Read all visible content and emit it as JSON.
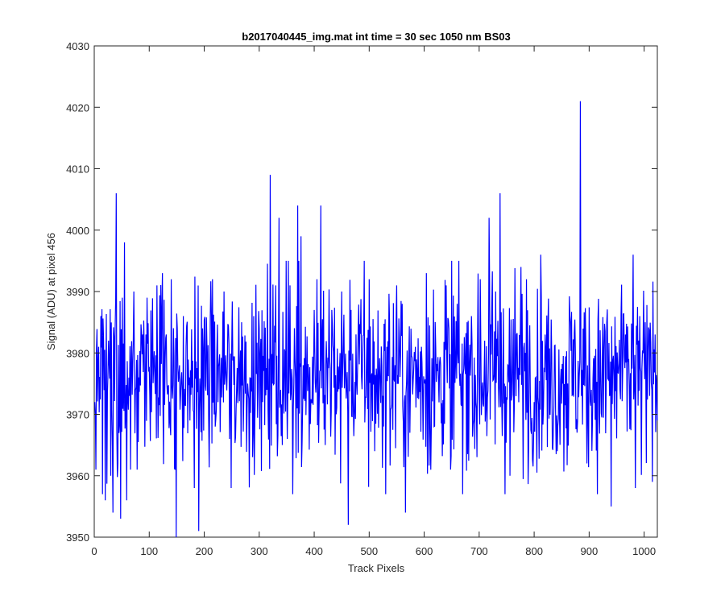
{
  "chart_data": {
    "type": "line",
    "title": "b2017040445_img.mat int time = 30 sec  1050 nm BS03",
    "xlabel": "Track Pixels",
    "ylabel": "Signal (ADU) at pixel 456",
    "xlim": [
      0,
      1024
    ],
    "ylim": [
      3950,
      4030
    ],
    "xticks": [
      0,
      100,
      200,
      300,
      400,
      500,
      600,
      700,
      800,
      900,
      1000
    ],
    "yticks": [
      3950,
      3960,
      3970,
      3980,
      3990,
      4000,
      4010,
      4020,
      4030
    ],
    "grid": false,
    "legend": "none",
    "colors": {
      "series": "#0000ff",
      "axes": "#262626",
      "background": "#ffffff"
    },
    "series": [
      {
        "x_start": 1,
        "x_step": 1,
        "mean": 3976.2,
        "std": 7.4,
        "seed": 445,
        "values_note": "",
        "values_sampled": [
          [
            1,
            3972
          ],
          [
            3,
            3961
          ],
          [
            8,
            3981
          ],
          [
            12,
            3986
          ],
          [
            15,
            3957
          ],
          [
            20,
            3956
          ],
          [
            26,
            3982
          ],
          [
            30,
            3960
          ],
          [
            34,
            3954
          ],
          [
            38,
            3984
          ],
          [
            40,
            4006
          ],
          [
            43,
            3962
          ],
          [
            48,
            3953
          ],
          [
            51,
            3989
          ],
          [
            55,
            3998
          ],
          [
            59,
            3956
          ],
          [
            66,
            3961
          ],
          [
            72,
            3990
          ],
          [
            78,
            3961
          ],
          [
            88,
            3983
          ],
          [
            96,
            3989
          ],
          [
            108,
            3978
          ],
          [
            114,
            3991
          ],
          [
            124,
            3993
          ],
          [
            131,
            3983
          ],
          [
            140,
            3992
          ],
          [
            147,
            3961
          ],
          [
            149,
            3950
          ],
          [
            155,
            3978
          ],
          [
            162,
            3986
          ],
          [
            174,
            3969
          ],
          [
            182,
            3958
          ],
          [
            190,
            3951
          ],
          [
            197,
            3984
          ],
          [
            215,
            3992
          ],
          [
            220,
            3968
          ],
          [
            230,
            3975
          ],
          [
            236,
            3990
          ],
          [
            249,
            3958
          ],
          [
            262,
            3978
          ],
          [
            268,
            3985
          ],
          [
            278,
            3971
          ],
          [
            290,
            3986
          ],
          [
            300,
            3984
          ],
          [
            306,
            3972
          ],
          [
            314,
            3974
          ],
          [
            320,
            4009
          ],
          [
            324,
            3975
          ],
          [
            330,
            3991
          ],
          [
            336,
            4002
          ],
          [
            342,
            3965
          ],
          [
            350,
            3976
          ],
          [
            356,
            3991
          ],
          [
            361,
            3957
          ],
          [
            365,
            3979
          ],
          [
            370,
            4004
          ],
          [
            372,
            3995
          ],
          [
            376,
            3999
          ],
          [
            380,
            3978
          ],
          [
            390,
            3976
          ],
          [
            400,
            3987
          ],
          [
            405,
            3992
          ],
          [
            412,
            4004
          ],
          [
            420,
            3965
          ],
          [
            432,
            3987
          ],
          [
            440,
            3970
          ],
          [
            450,
            3990
          ],
          [
            462,
            3952
          ],
          [
            467,
            3987
          ],
          [
            480,
            3984
          ],
          [
            491,
            3995
          ],
          [
            500,
            3992
          ],
          [
            510,
            3964
          ],
          [
            520,
            3975
          ],
          [
            532,
            3981
          ],
          [
            540,
            3971
          ],
          [
            550,
            3991
          ],
          [
            560,
            3988
          ],
          [
            566,
            3954
          ],
          [
            574,
            3967
          ],
          [
            584,
            3981
          ],
          [
            595,
            3981
          ],
          [
            604,
            3993
          ],
          [
            618,
            3968
          ],
          [
            630,
            3978
          ],
          [
            640,
            3991
          ],
          [
            648,
            3961
          ],
          [
            660,
            3988
          ],
          [
            670,
            3957
          ],
          [
            678,
            3985
          ],
          [
            686,
            3986
          ],
          [
            694,
            3972
          ],
          [
            702,
            3992
          ],
          [
            710,
            3982
          ],
          [
            718,
            4002
          ],
          [
            730,
            3990
          ],
          [
            738,
            4006
          ],
          [
            746,
            3975
          ],
          [
            756,
            3960
          ],
          [
            768,
            3983
          ],
          [
            776,
            3994
          ],
          [
            786,
            3992
          ],
          [
            800,
            3972
          ],
          [
            812,
            3996
          ],
          [
            820,
            3983
          ],
          [
            830,
            3975
          ],
          [
            842,
            3964
          ],
          [
            852,
            3975
          ],
          [
            866,
            3985
          ],
          [
            875,
            3980
          ],
          [
            884,
            4021
          ],
          [
            896,
            3962
          ],
          [
            904,
            3974
          ],
          [
            918,
            3970
          ],
          [
            932,
            3985
          ],
          [
            940,
            3955
          ],
          [
            952,
            3977
          ],
          [
            966,
            3983
          ],
          [
            980,
            3996
          ],
          [
            984,
            3958
          ],
          [
            994,
            3977
          ],
          [
            1002,
            3985
          ],
          [
            1010,
            3973
          ],
          [
            1015,
            3959
          ],
          [
            1020,
            3983
          ],
          [
            1024,
            3969
          ]
        ]
      }
    ]
  }
}
